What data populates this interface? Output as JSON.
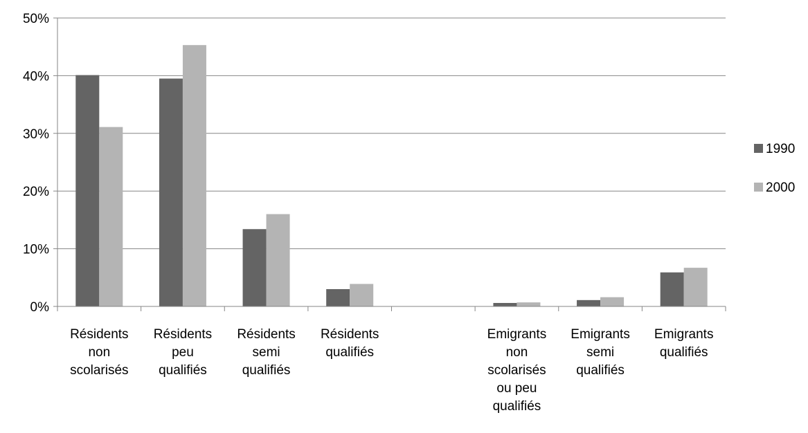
{
  "chart_data": {
    "type": "bar",
    "categories": [
      [
        "Résidents",
        "non",
        "scolarisés"
      ],
      [
        "Résidents",
        "peu",
        "qualifiés"
      ],
      [
        "Résidents",
        "semi",
        "qualifiés"
      ],
      [
        "Résidents",
        "qualifiés"
      ],
      [],
      [
        "Emigrants",
        "non",
        "scolarisés",
        "ou  peu",
        "qualifiés"
      ],
      [
        "Emigrants",
        "semi",
        "qualifiés"
      ],
      [
        "Emigrants",
        "qualifiés"
      ]
    ],
    "series": [
      {
        "name": "1990",
        "color": "#646464",
        "values": [
          40.1,
          39.5,
          13.4,
          3.0,
          null,
          0.6,
          1.1,
          5.9
        ]
      },
      {
        "name": "2000",
        "color": "#b4b4b4",
        "values": [
          31.1,
          45.3,
          16.0,
          3.9,
          null,
          0.7,
          1.6,
          6.7
        ]
      }
    ],
    "ylim": [
      0,
      50
    ],
    "yticks": [
      0,
      10,
      20,
      30,
      40,
      50
    ],
    "ytick_labels": [
      "0%",
      "10%",
      "20%",
      "30%",
      "40%",
      "50%"
    ],
    "grid": true,
    "legend": "right",
    "title": "",
    "xlabel": "",
    "ylabel": ""
  }
}
